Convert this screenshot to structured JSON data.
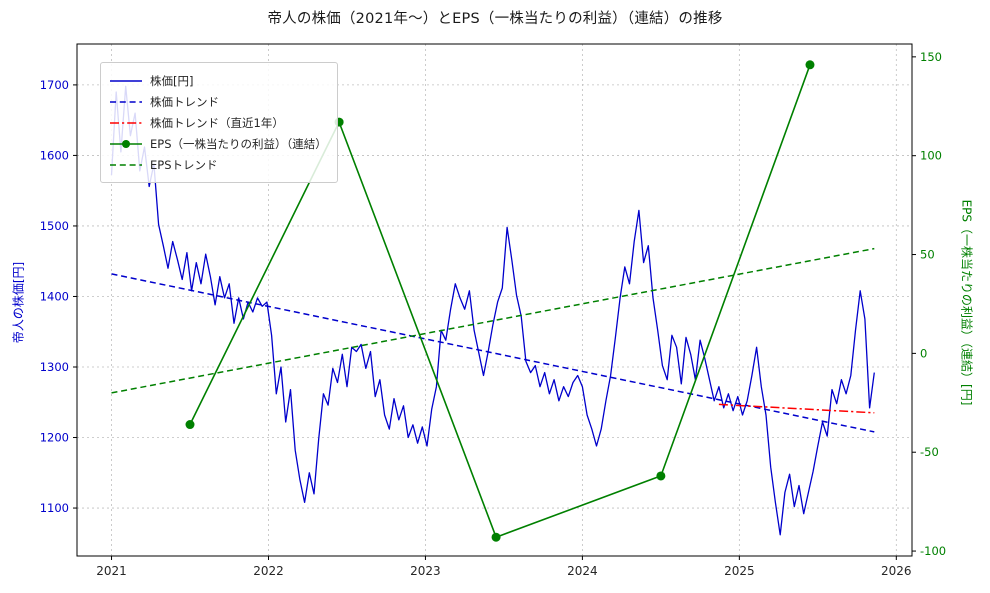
{
  "colors": {
    "stock_blue": "#0000cc",
    "eps_green": "#008000",
    "recent_red": "#ff0000",
    "grid_gray": "#bfbfbf"
  },
  "chart_data": {
    "type": "line",
    "title": "帝人の株価（2021年〜）とEPS（一株当たりの利益）（連結）の推移",
    "xlabel": "",
    "ylabel_left": "帝人の株価[円]",
    "ylabel_right": "EPS（一株当たりの利益）（連結）[円]",
    "x_ticks": [
      2021,
      2022,
      2023,
      2024,
      2025,
      2026
    ],
    "y_left_ticks": [
      1100,
      1200,
      1300,
      1400,
      1500,
      1600,
      1700
    ],
    "y_right_ticks": [
      -100,
      -50,
      0,
      50,
      100,
      150
    ],
    "x_range": [
      2020.78,
      2026.1
    ],
    "y_left_range": [
      1032,
      1758
    ],
    "y_right_range": [
      -102.5,
      156.5
    ],
    "grid": true,
    "legend_position": "upper-left",
    "series": {
      "stock_price": {
        "name": "株価[円]",
        "axis": "left",
        "style": "solid",
        "color": "#0000cc",
        "x_start": 2021.0,
        "x_step": 0.03,
        "values": [
          1572,
          1690,
          1605,
          1698,
          1628,
          1660,
          1578,
          1612,
          1556,
          1588,
          1502,
          1472,
          1440,
          1478,
          1452,
          1424,
          1462,
          1408,
          1448,
          1418,
          1460,
          1428,
          1388,
          1428,
          1398,
          1418,
          1362,
          1398,
          1368,
          1392,
          1378,
          1398,
          1386,
          1392,
          1345,
          1262,
          1300,
          1222,
          1268,
          1182,
          1140,
          1108,
          1150,
          1120,
          1198,
          1262,
          1246,
          1298,
          1278,
          1318,
          1272,
          1328,
          1322,
          1332,
          1298,
          1322,
          1258,
          1282,
          1232,
          1212,
          1255,
          1225,
          1245,
          1200,
          1218,
          1192,
          1215,
          1188,
          1240,
          1272,
          1352,
          1338,
          1382,
          1418,
          1398,
          1382,
          1408,
          1352,
          1320,
          1288,
          1322,
          1360,
          1392,
          1412,
          1498,
          1452,
          1402,
          1372,
          1308,
          1292,
          1302,
          1272,
          1292,
          1262,
          1282,
          1252,
          1272,
          1258,
          1278,
          1288,
          1272,
          1232,
          1212,
          1188,
          1212,
          1252,
          1288,
          1342,
          1398,
          1442,
          1418,
          1478,
          1522,
          1448,
          1472,
          1398,
          1352,
          1302,
          1282,
          1345,
          1328,
          1276,
          1342,
          1318,
          1282,
          1338,
          1312,
          1282,
          1252,
          1272,
          1242,
          1262,
          1238,
          1258,
          1232,
          1252,
          1288,
          1328,
          1272,
          1232,
          1158,
          1108,
          1062,
          1122,
          1148,
          1102,
          1132,
          1092,
          1122,
          1152,
          1188,
          1222,
          1202,
          1268,
          1248,
          1282,
          1262,
          1288,
          1352,
          1408,
          1368,
          1242,
          1292
        ]
      },
      "stock_trend": {
        "name": "株価トレンド",
        "axis": "left",
        "style": "dashed",
        "color": "#0000cc",
        "x": [
          2021.0,
          2025.86
        ],
        "y": [
          1432,
          1208
        ]
      },
      "stock_trend_recent": {
        "name": "株価トレンド（直近1年）",
        "axis": "left",
        "style": "dashdot",
        "color": "#ff0000",
        "x": [
          2024.87,
          2025.86
        ],
        "y": [
          1247,
          1235
        ]
      },
      "eps": {
        "name": "EPS（一株当たりの利益）（連結）",
        "axis": "right",
        "style": "solid-marker",
        "color": "#008000",
        "x": [
          2021.5,
          2022.45,
          2023.45,
          2024.5,
          2025.45
        ],
        "y": [
          -36,
          117,
          -93,
          -62,
          146
        ]
      },
      "eps_trend": {
        "name": "EPSトレンド",
        "axis": "right",
        "style": "dashed",
        "color": "#008000",
        "x": [
          2021.0,
          2025.86
        ],
        "y": [
          -20,
          53
        ]
      }
    },
    "legend": {
      "items": [
        {
          "label": "株価[円]",
          "color": "#0000cc",
          "dash": "solid",
          "marker": false
        },
        {
          "label": "株価トレンド",
          "color": "#0000cc",
          "dash": "dashed",
          "marker": false
        },
        {
          "label": "株価トレンド（直近1年）",
          "color": "#ff0000",
          "dash": "dashdot",
          "marker": false
        },
        {
          "label": "EPS（一株当たりの利益）（連結）",
          "color": "#008000",
          "dash": "solid",
          "marker": true
        },
        {
          "label": "EPSトレンド",
          "color": "#008000",
          "dash": "dashed",
          "marker": false
        }
      ]
    }
  }
}
